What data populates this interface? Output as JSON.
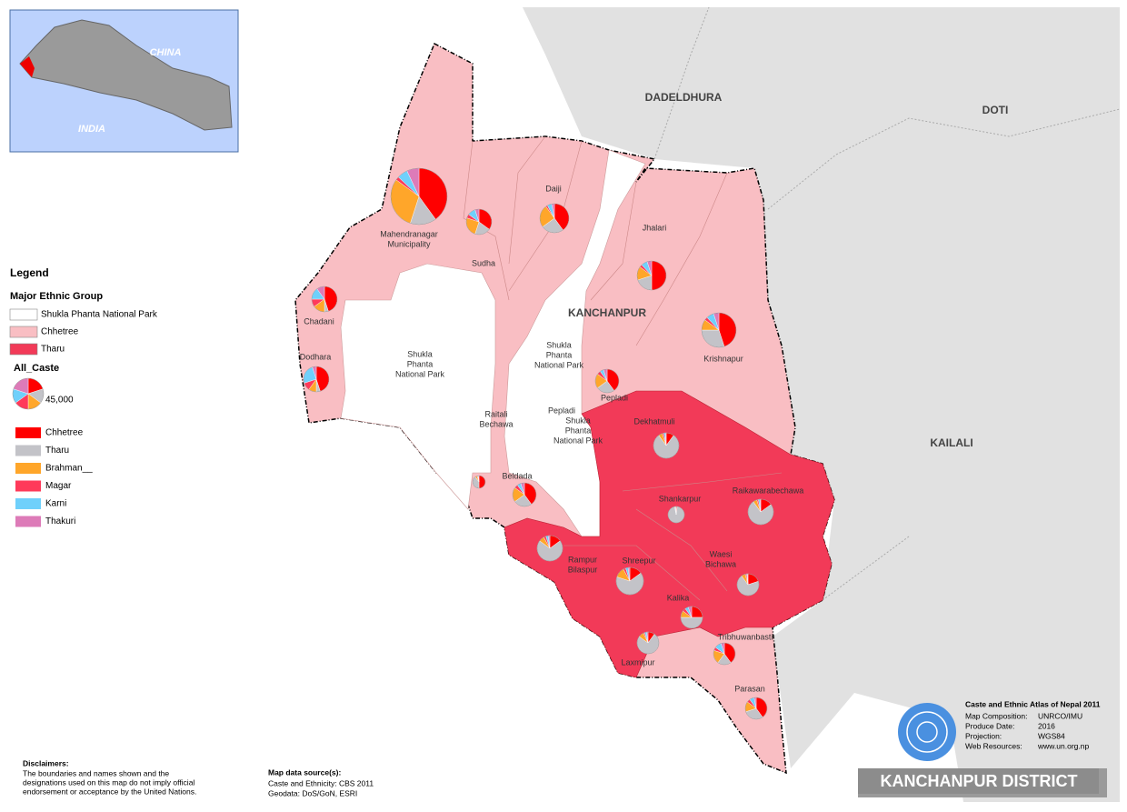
{
  "inset": {
    "labels": [
      "CHINA",
      "INDIA"
    ]
  },
  "regions": [
    "DADELDHURA",
    "DOTI",
    "KAILALI",
    "KANCHANPUR"
  ],
  "park_labels": [
    [
      "Shukla",
      "Phanta",
      "National Park"
    ],
    [
      "Shukla",
      "Phanta",
      "National Park"
    ],
    [
      "Pepladi",
      "Shukla",
      "Phanta",
      "National Park"
    ]
  ],
  "legend": {
    "title": "Legend",
    "group_title": "Major Ethnic Group",
    "groups": [
      {
        "name": "Shukla Phanta National Park",
        "color": "#ffffff"
      },
      {
        "name": "Chhetree",
        "color": "#f9bec3"
      },
      {
        "name": "Tharu",
        "color": "#f23a58"
      }
    ],
    "caste_title": "All_Caste",
    "size": {
      "value": 45000,
      "label": "45,000"
    },
    "castes": [
      {
        "name": "Chhetree",
        "color": "#ff0000"
      },
      {
        "name": "Tharu",
        "color": "#c3c3c8"
      },
      {
        "name": "Brahman__",
        "color": "#ffa62a"
      },
      {
        "name": "Magar",
        "color": "#ff3a5a"
      },
      {
        "name": "Karni",
        "color": "#6fd0fb"
      },
      {
        "name": "Thakuri",
        "color": "#dd7bb8"
      }
    ]
  },
  "pies": [
    {
      "label": [
        "Mahendranagar",
        "Municipality"
      ],
      "population": 150000,
      "values": [
        40,
        15,
        30,
        2,
        6,
        7
      ]
    },
    {
      "label": [
        "Sudha"
      ],
      "population": 30500,
      "values": [
        35,
        20,
        25,
        5,
        10,
        5
      ]
    },
    {
      "label": [
        "Daiji"
      ],
      "population": 39900,
      "values": [
        40,
        25,
        25,
        2,
        5,
        3
      ]
    },
    {
      "label": [
        "Jhalari"
      ],
      "population": 39900,
      "values": [
        50,
        20,
        15,
        3,
        7,
        5
      ]
    },
    {
      "label": [
        "Chadani"
      ],
      "population": 30500,
      "values": [
        45,
        5,
        15,
        10,
        15,
        10
      ]
    },
    {
      "label": [
        "Dodhara"
      ],
      "population": 30500,
      "values": [
        45,
        5,
        10,
        10,
        25,
        5
      ]
    },
    {
      "label": [
        "Krishnapur"
      ],
      "population": 56200,
      "values": [
        45,
        30,
        10,
        3,
        7,
        5
      ]
    },
    {
      "label": [
        "Pepladi"
      ],
      "population": 26300,
      "values": [
        40,
        25,
        20,
        5,
        5,
        5
      ]
    },
    {
      "label": [
        "Dekhatmuli"
      ],
      "population": 30500,
      "values": [
        10,
        80,
        5,
        2,
        2,
        1
      ]
    },
    {
      "label": [
        "Beldada"
      ],
      "population": 26300,
      "values": [
        40,
        25,
        20,
        5,
        5,
        5
      ]
    },
    {
      "label": [
        "Raitali",
        "Bechawa"
      ],
      "population": 7600,
      "values": [
        50,
        40,
        5,
        2,
        2,
        1
      ]
    },
    {
      "label": [
        "Shankarpur"
      ],
      "population": 12600,
      "values": [
        2,
        95,
        1,
        1,
        1,
        0
      ]
    },
    {
      "label": [
        "Raikawarabechawa"
      ],
      "population": 30500,
      "values": [
        15,
        75,
        5,
        2,
        2,
        1
      ]
    },
    {
      "label": [
        "Rampur",
        "Bilaspur"
      ],
      "population": 30500,
      "values": [
        15,
        70,
        7,
        3,
        3,
        2
      ]
    },
    {
      "label": [
        "Shreepur"
      ],
      "population": 35000,
      "values": [
        15,
        65,
        12,
        3,
        3,
        2
      ]
    },
    {
      "label": [
        "Waesi",
        "Bichawa"
      ],
      "population": 22400,
      "values": [
        20,
        70,
        6,
        2,
        1,
        1
      ]
    },
    {
      "label": [
        "Kalika"
      ],
      "population": 22400,
      "values": [
        25,
        50,
        10,
        5,
        5,
        5
      ]
    },
    {
      "label": [
        "Laxmipur"
      ],
      "population": 22400,
      "values": [
        10,
        75,
        8,
        2,
        3,
        2
      ]
    },
    {
      "label": [
        "Tribhuwanbasti"
      ],
      "population": 22400,
      "values": [
        40,
        20,
        20,
        5,
        10,
        5
      ]
    },
    {
      "label": [
        "Parasan"
      ],
      "population": 22400,
      "values": [
        40,
        30,
        15,
        5,
        7,
        3
      ]
    }
  ],
  "info": {
    "title": "Caste and Ethnic Atlas of Nepal 2011",
    "rows": [
      [
        "Map Composition:",
        "UNRCO/IMU"
      ],
      [
        "Produce Date:",
        "2016"
      ],
      [
        "Projection:",
        "WGS84"
      ],
      [
        "Web Resources:",
        "www.un.org.np"
      ]
    ]
  },
  "disclaimer": {
    "title": "Disclaimers:",
    "lines": [
      "The boundaries and names shown and the",
      "designations used on this map do not imply official",
      "endorsement or acceptance by the United Nations."
    ]
  },
  "sources": {
    "title": "Map data source(s):",
    "lines": [
      "Caste and Ethnicity: CBS 2011",
      "Geodata: DoS/GoN, ESRI"
    ]
  },
  "footer_title": "KANCHANPUR DISTRICT"
}
